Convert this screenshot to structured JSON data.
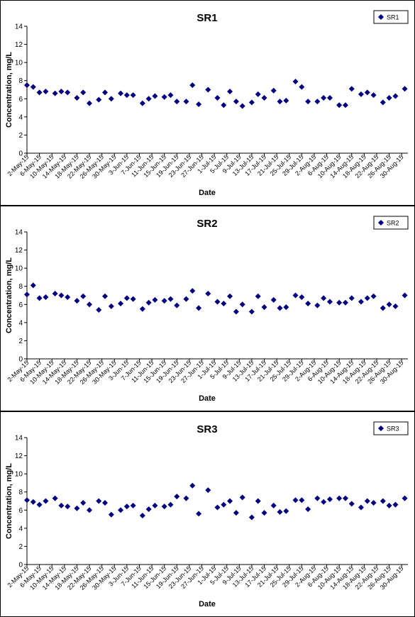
{
  "chart_data": [
    {
      "type": "scatter",
      "title": "SR1",
      "xlabel": "Date",
      "ylabel": "Concentration, mg/L",
      "legend": "upper right",
      "grid": false,
      "xlim": [
        "2015-05-02",
        "2015-09-01"
      ],
      "xticks": [
        {
          "value": "2015-05-02",
          "label": "2-May-15"
        },
        {
          "value": "2015-05-06",
          "label": "6-May-15"
        },
        {
          "value": "2015-05-10",
          "label": "10-May-15"
        },
        {
          "value": "2015-05-14",
          "label": "14-May-15"
        },
        {
          "value": "2015-05-18",
          "label": "18-May-15"
        },
        {
          "value": "2015-05-22",
          "label": "22-May-15"
        },
        {
          "value": "2015-05-26",
          "label": "26-May-15"
        },
        {
          "value": "2015-05-30",
          "label": "30-May-15"
        },
        {
          "value": "2015-06-03",
          "label": "3-Jun-15"
        },
        {
          "value": "2015-06-07",
          "label": "7-Jun-15"
        },
        {
          "value": "2015-06-11",
          "label": "11-Jun-15"
        },
        {
          "value": "2015-06-15",
          "label": "15-Jun-15"
        },
        {
          "value": "2015-06-19",
          "label": "19-Jun-15"
        },
        {
          "value": "2015-06-23",
          "label": "23-Jun-15"
        },
        {
          "value": "2015-06-27",
          "label": "27-Jun-15"
        },
        {
          "value": "2015-07-01",
          "label": "1-Jul-15"
        },
        {
          "value": "2015-07-05",
          "label": "5-Jul-15"
        },
        {
          "value": "2015-07-09",
          "label": "9-Jul-15"
        },
        {
          "value": "2015-07-13",
          "label": "13-Jul-15"
        },
        {
          "value": "2015-07-17",
          "label": "17-Jul-15"
        },
        {
          "value": "2015-07-21",
          "label": "21-Jul-15"
        },
        {
          "value": "2015-07-25",
          "label": "25-Jul-15"
        },
        {
          "value": "2015-07-29",
          "label": "29-Jul-15"
        },
        {
          "value": "2015-08-02",
          "label": "2-Aug-15"
        },
        {
          "value": "2015-08-06",
          "label": "6-Aug-15"
        },
        {
          "value": "2015-08-10",
          "label": "10-Aug-15"
        },
        {
          "value": "2015-08-14",
          "label": "14-Aug-15"
        },
        {
          "value": "2015-08-18",
          "label": "18-Aug-15"
        },
        {
          "value": "2015-08-22",
          "label": "22-Aug-15"
        },
        {
          "value": "2015-08-26",
          "label": "26-Aug-15"
        },
        {
          "value": "2015-08-30",
          "label": "30-Aug-15"
        }
      ],
      "ylim": [
        0,
        14
      ],
      "yticks": [
        0,
        2,
        4,
        6,
        8,
        10,
        12,
        14
      ],
      "x": [
        "2015-05-02",
        "2015-05-04",
        "2015-05-06",
        "2015-05-08",
        "2015-05-11",
        "2015-05-13",
        "2015-05-15",
        "2015-05-18",
        "2015-05-20",
        "2015-05-22",
        "2015-05-25",
        "2015-05-27",
        "2015-05-29",
        "2015-06-01",
        "2015-06-03",
        "2015-06-05",
        "2015-06-08",
        "2015-06-10",
        "2015-06-12",
        "2015-06-15",
        "2015-06-17",
        "2015-06-19",
        "2015-06-22",
        "2015-06-24",
        "2015-06-26",
        "2015-06-29",
        "2015-07-02",
        "2015-07-04",
        "2015-07-06",
        "2015-07-08",
        "2015-07-10",
        "2015-07-13",
        "2015-07-15",
        "2015-07-17",
        "2015-07-20",
        "2015-07-22",
        "2015-07-24",
        "2015-07-27",
        "2015-07-29",
        "2015-07-31",
        "2015-08-03",
        "2015-08-05",
        "2015-08-07",
        "2015-08-10",
        "2015-08-12",
        "2015-08-14",
        "2015-08-17",
        "2015-08-19",
        "2015-08-21",
        "2015-08-24",
        "2015-08-26",
        "2015-08-28",
        "2015-08-31"
      ],
      "series": [
        {
          "name": "SR1",
          "color": "#000080",
          "values": [
            7.5,
            7.3,
            6.7,
            6.8,
            6.6,
            6.8,
            6.7,
            6.1,
            6.7,
            5.5,
            5.9,
            6.7,
            6.0,
            6.6,
            6.4,
            6.4,
            5.5,
            6.0,
            6.3,
            6.2,
            6.4,
            5.7,
            5.7,
            7.5,
            5.4,
            7.0,
            6.1,
            5.3,
            6.8,
            5.7,
            5.2,
            5.6,
            6.5,
            6.1,
            6.9,
            5.7,
            5.8,
            7.9,
            7.3,
            5.7,
            5.7,
            6.1,
            6.1,
            5.3,
            5.3,
            7.1,
            6.5,
            6.7,
            6.4,
            5.6,
            6.1,
            6.3,
            7.1
          ]
        }
      ]
    },
    {
      "type": "scatter",
      "title": "SR2",
      "xlabel": "Date",
      "ylabel": "Concentration, mg/L",
      "legend": "upper right",
      "grid": false,
      "xlim": [
        "2015-05-02",
        "2015-09-01"
      ],
      "xticks": [
        {
          "value": "2015-05-02",
          "label": "2-May-15"
        },
        {
          "value": "2015-05-06",
          "label": "6-May-15"
        },
        {
          "value": "2015-05-10",
          "label": "10-May-15"
        },
        {
          "value": "2015-05-14",
          "label": "14-May-15"
        },
        {
          "value": "2015-05-18",
          "label": "18-May-15"
        },
        {
          "value": "2015-05-22",
          "label": "22-May-15"
        },
        {
          "value": "2015-05-26",
          "label": "26-May-15"
        },
        {
          "value": "2015-05-30",
          "label": "30-May-15"
        },
        {
          "value": "2015-06-03",
          "label": "3-Jun-15"
        },
        {
          "value": "2015-06-07",
          "label": "7-Jun-15"
        },
        {
          "value": "2015-06-11",
          "label": "11-Jun-15"
        },
        {
          "value": "2015-06-15",
          "label": "15-Jun-15"
        },
        {
          "value": "2015-06-19",
          "label": "19-Jun-15"
        },
        {
          "value": "2015-06-23",
          "label": "23-Jun-15"
        },
        {
          "value": "2015-06-27",
          "label": "27-Jun-15"
        },
        {
          "value": "2015-07-01",
          "label": "1-Jul-15"
        },
        {
          "value": "2015-07-05",
          "label": "5-Jul-15"
        },
        {
          "value": "2015-07-09",
          "label": "9-Jul-15"
        },
        {
          "value": "2015-07-13",
          "label": "13-Jul-15"
        },
        {
          "value": "2015-07-17",
          "label": "17-Jul-15"
        },
        {
          "value": "2015-07-21",
          "label": "21-Jul-15"
        },
        {
          "value": "2015-07-25",
          "label": "25-Jul-15"
        },
        {
          "value": "2015-07-29",
          "label": "29-Jul-15"
        },
        {
          "value": "2015-08-02",
          "label": "2-Aug-15"
        },
        {
          "value": "2015-08-06",
          "label": "6-Aug-15"
        },
        {
          "value": "2015-08-10",
          "label": "10-Aug-15"
        },
        {
          "value": "2015-08-14",
          "label": "14-Aug-15"
        },
        {
          "value": "2015-08-18",
          "label": "18-Aug-15"
        },
        {
          "value": "2015-08-22",
          "label": "22-Aug-15"
        },
        {
          "value": "2015-08-26",
          "label": "26-Aug-15"
        },
        {
          "value": "2015-08-30",
          "label": "30-Aug-15"
        }
      ],
      "ylim": [
        0,
        14
      ],
      "yticks": [
        0,
        2,
        4,
        6,
        8,
        10,
        12,
        14
      ],
      "x": [
        "2015-05-02",
        "2015-05-04",
        "2015-05-06",
        "2015-05-08",
        "2015-05-11",
        "2015-05-13",
        "2015-05-15",
        "2015-05-18",
        "2015-05-20",
        "2015-05-22",
        "2015-05-25",
        "2015-05-27",
        "2015-05-29",
        "2015-06-01",
        "2015-06-03",
        "2015-06-05",
        "2015-06-08",
        "2015-06-10",
        "2015-06-12",
        "2015-06-15",
        "2015-06-17",
        "2015-06-19",
        "2015-06-22",
        "2015-06-24",
        "2015-06-26",
        "2015-06-29",
        "2015-07-02",
        "2015-07-04",
        "2015-07-06",
        "2015-07-08",
        "2015-07-10",
        "2015-07-13",
        "2015-07-15",
        "2015-07-17",
        "2015-07-20",
        "2015-07-22",
        "2015-07-24",
        "2015-07-27",
        "2015-07-29",
        "2015-07-31",
        "2015-08-03",
        "2015-08-05",
        "2015-08-07",
        "2015-08-10",
        "2015-08-12",
        "2015-08-14",
        "2015-08-17",
        "2015-08-19",
        "2015-08-21",
        "2015-08-24",
        "2015-08-26",
        "2015-08-28",
        "2015-08-31"
      ],
      "series": [
        {
          "name": "SR2",
          "color": "#000080",
          "values": [
            7.1,
            8.1,
            6.7,
            6.8,
            7.2,
            7.0,
            6.8,
            6.4,
            6.9,
            6.0,
            5.4,
            6.9,
            5.8,
            6.1,
            6.7,
            6.6,
            5.5,
            6.2,
            6.5,
            6.4,
            6.6,
            5.9,
            6.6,
            7.5,
            5.6,
            7.2,
            6.3,
            6.1,
            6.9,
            5.2,
            6.0,
            5.2,
            6.9,
            5.7,
            6.5,
            5.6,
            5.7,
            7.0,
            6.8,
            6.1,
            5.9,
            6.7,
            6.3,
            6.2,
            6.2,
            6.7,
            6.3,
            6.7,
            6.9,
            5.6,
            6.0,
            5.8,
            7.0
          ]
        }
      ]
    },
    {
      "type": "scatter",
      "title": "SR3",
      "xlabel": "Date",
      "ylabel": "Concentration, mg/L",
      "legend": "upper right",
      "grid": false,
      "xlim": [
        "2015-05-02",
        "2015-09-01"
      ],
      "xticks": [
        {
          "value": "2015-05-02",
          "label": "2-May-15"
        },
        {
          "value": "2015-05-06",
          "label": "6-May-15"
        },
        {
          "value": "2015-05-10",
          "label": "10-May-15"
        },
        {
          "value": "2015-05-14",
          "label": "14-May-15"
        },
        {
          "value": "2015-05-18",
          "label": "18-May-15"
        },
        {
          "value": "2015-05-22",
          "label": "22-May-15"
        },
        {
          "value": "2015-05-26",
          "label": "26-May-15"
        },
        {
          "value": "2015-05-30",
          "label": "30-May-15"
        },
        {
          "value": "2015-06-03",
          "label": "3-Jun-15"
        },
        {
          "value": "2015-06-07",
          "label": "7-Jun-15"
        },
        {
          "value": "2015-06-11",
          "label": "11-Jun-15"
        },
        {
          "value": "2015-06-15",
          "label": "15-Jun-15"
        },
        {
          "value": "2015-06-19",
          "label": "19-Jun-15"
        },
        {
          "value": "2015-06-23",
          "label": "23-Jun-15"
        },
        {
          "value": "2015-06-27",
          "label": "27-Jun-15"
        },
        {
          "value": "2015-07-01",
          "label": "1-Jul-15"
        },
        {
          "value": "2015-07-05",
          "label": "5-Jul-15"
        },
        {
          "value": "2015-07-09",
          "label": "9-Jul-15"
        },
        {
          "value": "2015-07-13",
          "label": "13-Jul-15"
        },
        {
          "value": "2015-07-17",
          "label": "17-Jul-15"
        },
        {
          "value": "2015-07-21",
          "label": "21-Jul-15"
        },
        {
          "value": "2015-07-25",
          "label": "25-Jul-15"
        },
        {
          "value": "2015-07-29",
          "label": "29-Jul-15"
        },
        {
          "value": "2015-08-02",
          "label": "2-Aug-15"
        },
        {
          "value": "2015-08-06",
          "label": "6-Aug-15"
        },
        {
          "value": "2015-08-10",
          "label": "10-Aug-15"
        },
        {
          "value": "2015-08-14",
          "label": "14-Aug-15"
        },
        {
          "value": "2015-08-18",
          "label": "18-Aug-15"
        },
        {
          "value": "2015-08-22",
          "label": "22-Aug-15"
        },
        {
          "value": "2015-08-26",
          "label": "26-Aug-15"
        },
        {
          "value": "2015-08-30",
          "label": "30-Aug-15"
        }
      ],
      "ylim": [
        0,
        14
      ],
      "yticks": [
        0,
        2,
        4,
        6,
        8,
        10,
        12,
        14
      ],
      "x": [
        "2015-05-02",
        "2015-05-04",
        "2015-05-06",
        "2015-05-08",
        "2015-05-11",
        "2015-05-13",
        "2015-05-15",
        "2015-05-18",
        "2015-05-20",
        "2015-05-22",
        "2015-05-25",
        "2015-05-27",
        "2015-05-29",
        "2015-06-01",
        "2015-06-03",
        "2015-06-05",
        "2015-06-08",
        "2015-06-10",
        "2015-06-12",
        "2015-06-15",
        "2015-06-17",
        "2015-06-19",
        "2015-06-22",
        "2015-06-24",
        "2015-06-26",
        "2015-06-29",
        "2015-07-02",
        "2015-07-04",
        "2015-07-06",
        "2015-07-08",
        "2015-07-10",
        "2015-07-13",
        "2015-07-15",
        "2015-07-17",
        "2015-07-20",
        "2015-07-22",
        "2015-07-24",
        "2015-07-27",
        "2015-07-29",
        "2015-07-31",
        "2015-08-03",
        "2015-08-05",
        "2015-08-07",
        "2015-08-10",
        "2015-08-12",
        "2015-08-14",
        "2015-08-17",
        "2015-08-19",
        "2015-08-21",
        "2015-08-24",
        "2015-08-26",
        "2015-08-28",
        "2015-08-31"
      ],
      "series": [
        {
          "name": "SR3",
          "color": "#000080",
          "values": [
            7.1,
            6.9,
            6.6,
            7.0,
            7.3,
            6.5,
            6.4,
            6.2,
            6.8,
            6.0,
            7.0,
            6.8,
            5.5,
            6.0,
            6.4,
            6.5,
            5.4,
            6.1,
            6.5,
            6.4,
            6.6,
            7.5,
            7.3,
            8.7,
            5.6,
            8.2,
            6.3,
            6.6,
            7.0,
            5.7,
            7.4,
            5.2,
            7.0,
            5.7,
            6.5,
            5.8,
            5.9,
            7.1,
            7.1,
            6.1,
            7.3,
            6.9,
            7.2,
            7.3,
            7.3,
            6.7,
            6.3,
            7.0,
            6.8,
            7.0,
            6.5,
            6.6,
            7.3
          ]
        }
      ]
    }
  ]
}
